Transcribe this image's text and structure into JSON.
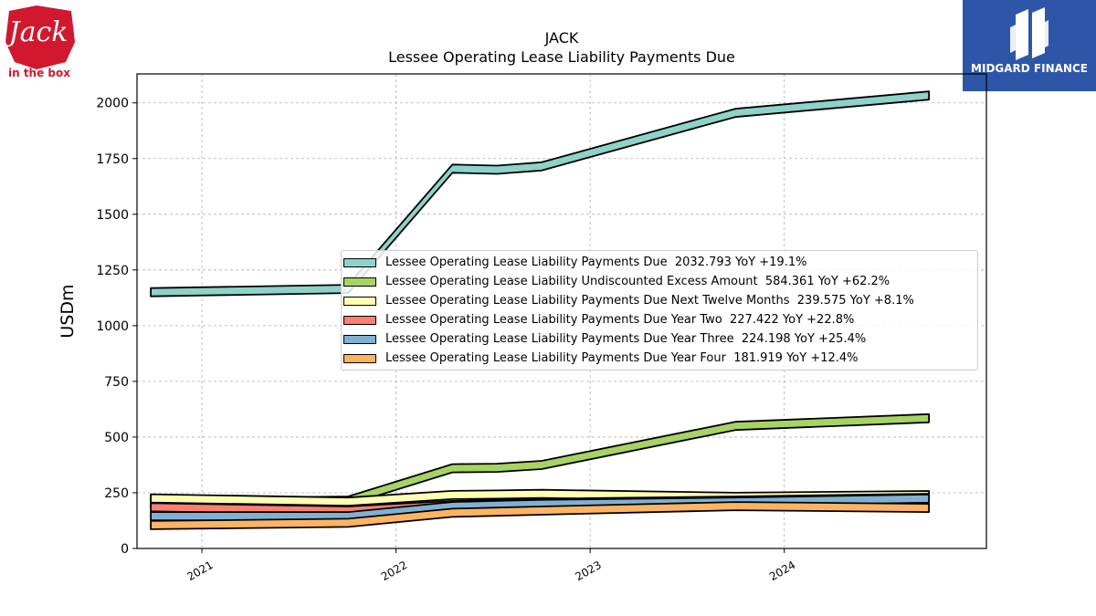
{
  "brand_left": {
    "logo_text": "Jack",
    "logo_subtext": "in the box",
    "color": "#d1182f"
  },
  "brand_right": {
    "name": "MIDGARD FINANCE",
    "color": "#2e56a8"
  },
  "chart_data": {
    "type": "area",
    "title": "JACK",
    "subtitle": "Lessee Operating Lease Liability Payments Due",
    "xlabel": "",
    "ylabel": "USDm",
    "ylim": [
      0,
      2130
    ],
    "yticks": [
      0,
      250,
      500,
      750,
      1000,
      1250,
      1500,
      1750,
      2000
    ],
    "xticks": [
      "2021",
      "2022",
      "2023",
      "2024"
    ],
    "x": [
      "2020-09-27",
      "2021-10-03",
      "2022-04-17",
      "2022-07-10",
      "2022-10-02",
      "2023-10-01",
      "2024-09-29"
    ],
    "grid": true,
    "legend_position": "center-right",
    "series": [
      {
        "name": "Lessee Operating Lease Liability Payments Due",
        "legend_label": "Lessee Operating Lease Liability Payments Due  2032.793 YoY +19.1%",
        "color": "#8dd3c7",
        "values": [
          1150,
          1165,
          1705,
          1700,
          1715,
          1955,
          2032.793
        ]
      },
      {
        "name": "Lessee Operating Lease Liability Undiscounted Excess Amount",
        "legend_label": "Lessee Operating Lease Liability Undiscounted Excess Amount  584.361 YoY +62.2%",
        "color": "#a8d363",
        "values": [
          205,
          215,
          360,
          362,
          375,
          550,
          584.361
        ]
      },
      {
        "name": "Lessee Operating Lease Liability Payments Due Next Twelve Months",
        "legend_label": "Lessee Operating Lease Liability Payments Due Next Twelve Months  239.575 YoY +8.1%",
        "color": "#ffffb3",
        "values": [
          225,
          210,
          240,
          242,
          245,
          232,
          239.575
        ]
      },
      {
        "name": "Lessee Operating Lease Liability Payments Due Year Two",
        "legend_label": "Lessee Operating Lease Liability Payments Due Year Two  227.422 YoY +22.8%",
        "color": "#fb8072",
        "values": [
          185,
          170,
          195,
          200,
          205,
          215,
          227.422
        ]
      },
      {
        "name": "Lessee Operating Lease Liability Payments Due Year Three",
        "legend_label": "Lessee Operating Lease Liability Payments Due Year Three  224.198 YoY +25.4%",
        "color": "#80b1d3",
        "values": [
          145,
          145,
          190,
          195,
          200,
          210,
          224.198
        ]
      },
      {
        "name": "Lessee Operating Lease Liability Payments Due Year Four",
        "legend_label": "Lessee Operating Lease Liability Payments Due Year Four  181.919 YoY +12.4%",
        "color": "#fdb462",
        "values": [
          105,
          115,
          160,
          165,
          170,
          190,
          181.919
        ]
      }
    ]
  }
}
